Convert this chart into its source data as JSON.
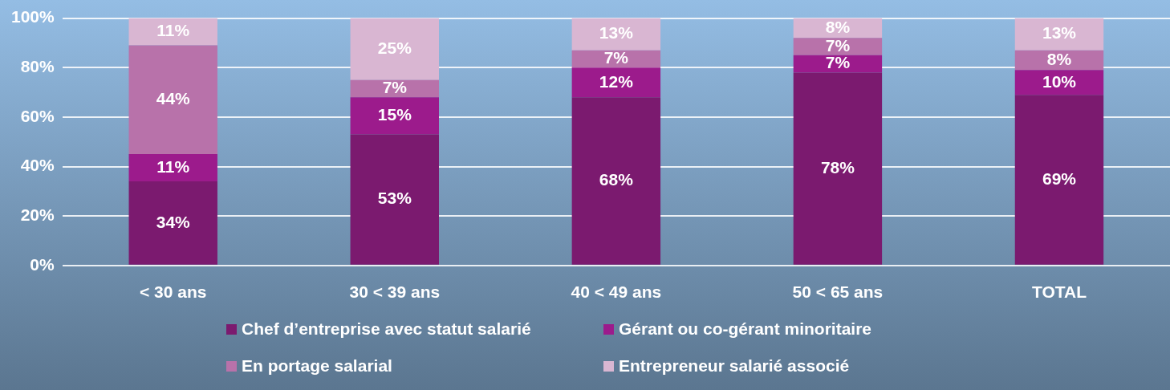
{
  "chart_data": {
    "type": "bar",
    "stacked": true,
    "categories": [
      "< 30 ans",
      "30 < 39 ans",
      "40 < 49 ans",
      "50 < 65 ans",
      "TOTAL"
    ],
    "series": [
      {
        "name": "Chef d’entreprise avec statut salarié",
        "color": "#7b1a6f",
        "values": [
          34,
          53,
          68,
          78,
          69
        ],
        "value_labels": [
          "34%",
          "53%",
          "68%",
          "78%",
          "69%"
        ]
      },
      {
        "name": "Gérant ou co-gérant minoritaire",
        "color": "#9c1b8c",
        "values": [
          11,
          15,
          12,
          7,
          10
        ],
        "value_labels": [
          "11%",
          "15%",
          "12%",
          "7%",
          "10%"
        ]
      },
      {
        "name": "En portage salarial",
        "color": "#b872aa",
        "values": [
          44,
          7,
          7,
          7,
          8
        ],
        "value_labels": [
          "44%",
          "7%",
          "7%",
          "7%",
          "8%"
        ]
      },
      {
        "name": "Entrepreneur salarié associé",
        "color": "#d9b6d2",
        "values": [
          11,
          25,
          13,
          8,
          13
        ],
        "value_labels": [
          "11%",
          "25%",
          "13%",
          "8%",
          "13%"
        ]
      }
    ],
    "ylim": [
      0,
      100
    ],
    "yticks": [
      {
        "value": 0,
        "label": "0%"
      },
      {
        "value": 20,
        "label": "20%"
      },
      {
        "value": 40,
        "label": "40%"
      },
      {
        "value": 60,
        "label": "60%"
      },
      {
        "value": 80,
        "label": "80%"
      },
      {
        "value": 100,
        "label": "100%"
      }
    ],
    "grid": "y",
    "legend": "bottom"
  }
}
